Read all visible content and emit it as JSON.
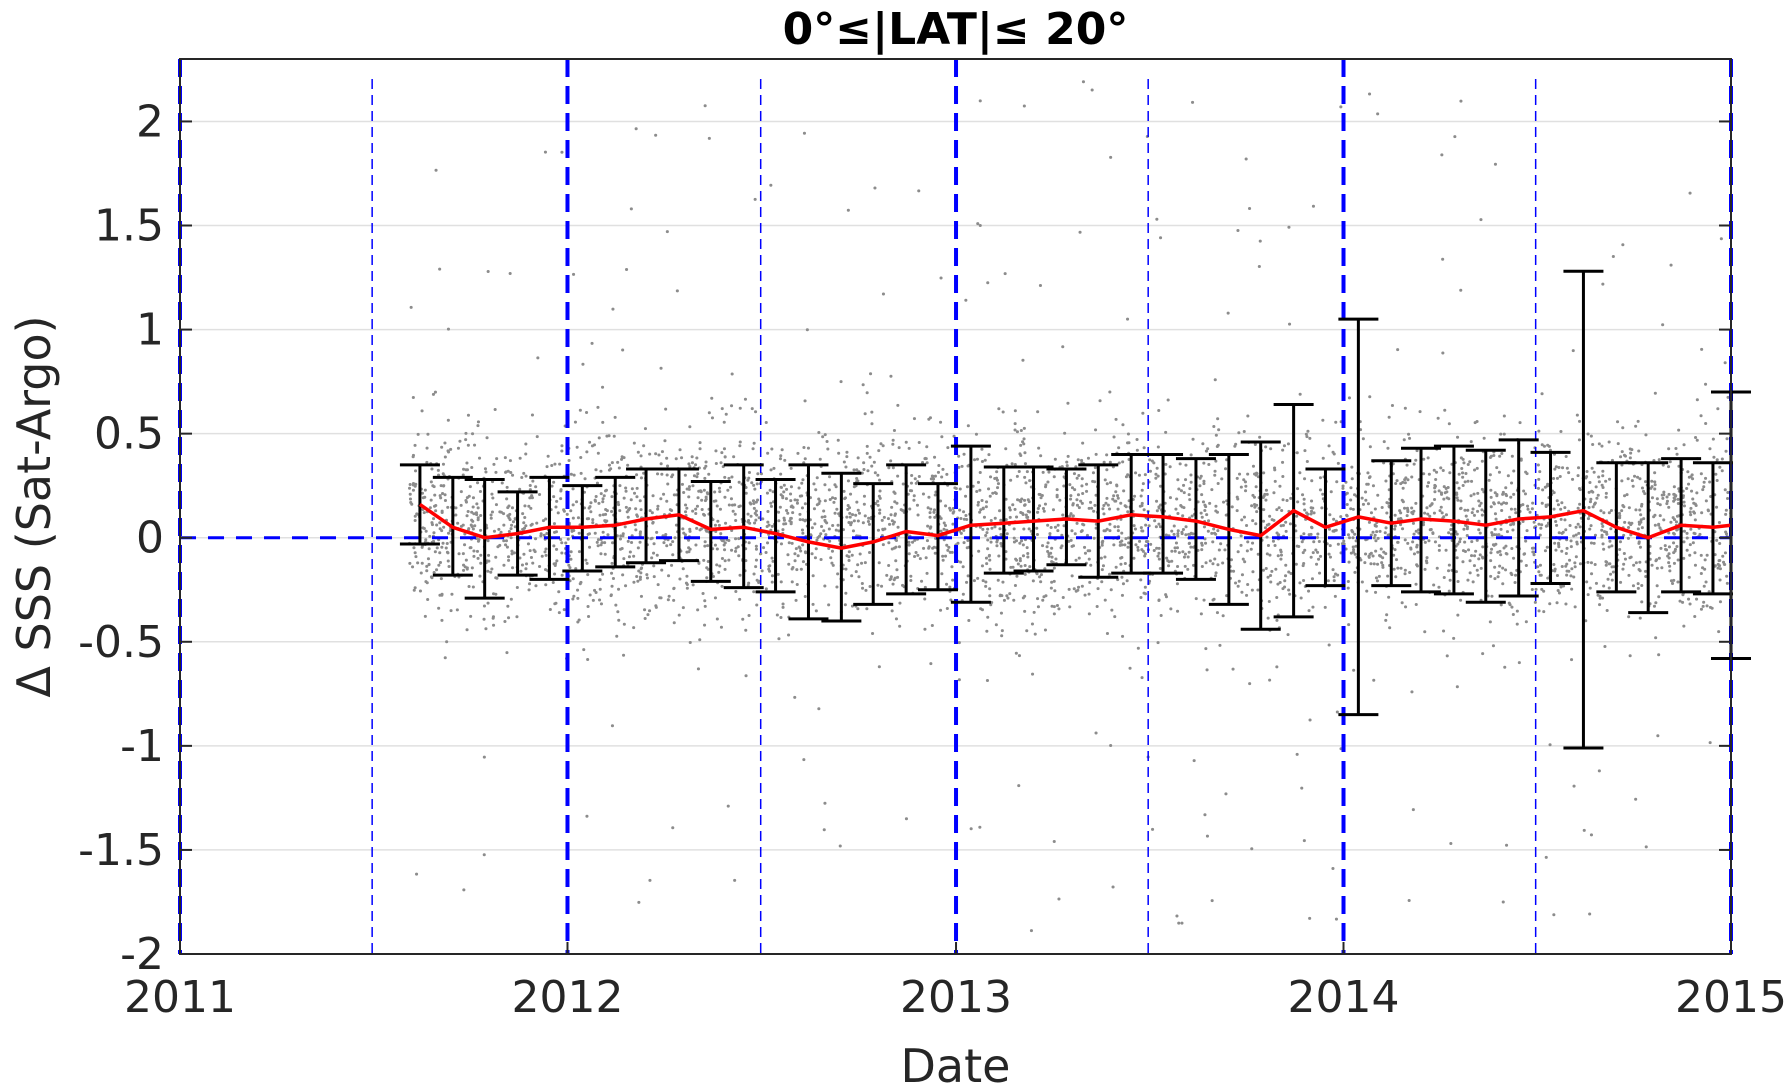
{
  "chart_data": {
    "type": "scatter",
    "title": "0°≤|LAT|≤ 20°",
    "xlabel": "Date",
    "ylabel": "Δ SSS (Sat-Argo)",
    "xlim": [
      "2011-01-01",
      "2015-01-01"
    ],
    "ylim": [
      -2,
      2.3
    ],
    "x_ticks": [
      "2011",
      "2012",
      "2013",
      "2014",
      "2015"
    ],
    "y_ticks": [
      "-2",
      "-1.5",
      "-1",
      "-0.5",
      "0",
      "0.5",
      "1",
      "1.5",
      "2"
    ],
    "y_tick_values": [
      -2,
      -1.5,
      -1,
      -0.5,
      0,
      0.5,
      1,
      1.5,
      2
    ],
    "grid": "horizontal",
    "colors": {
      "scatter": "#8c8c8c",
      "monthly_mean": "#ff0000",
      "error_bars": "#000000",
      "reference_lines": "#0000ff",
      "grid": "#e0e0e0"
    },
    "reference_lines": {
      "horizontal_zero": 0,
      "year_boundaries": [
        "2011-01-01",
        "2012-01-01",
        "2013-01-01",
        "2014-01-01",
        "2015-01-01"
      ],
      "mid_years": [
        "2011-07-01",
        "2012-07-01",
        "2013-07-01",
        "2014-07-01"
      ]
    },
    "scatter_note": "dense cloud of individual satellite-minus-Argo differences, mostly between -0.5 and 0.5",
    "series": [
      {
        "type": "line_with_errorbars",
        "dates": [
          "2011-08-15",
          "2011-09-15",
          "2011-10-15",
          "2011-11-15",
          "2011-12-15",
          "2012-01-15",
          "2012-02-15",
          "2012-03-15",
          "2012-04-15",
          "2012-05-15",
          "2012-06-15",
          "2012-07-15",
          "2012-08-15",
          "2012-09-15",
          "2012-10-15",
          "2012-11-15",
          "2012-12-15",
          "2013-01-15",
          "2013-02-15",
          "2013-03-15",
          "2013-04-15",
          "2013-05-15",
          "2013-06-15",
          "2013-07-15",
          "2013-08-15",
          "2013-09-15",
          "2013-10-15",
          "2013-11-15",
          "2013-12-15",
          "2014-01-15",
          "2014-02-15",
          "2014-03-15",
          "2014-04-15",
          "2014-05-15",
          "2014-06-15",
          "2014-07-15",
          "2014-08-15",
          "2014-09-15",
          "2014-10-15",
          "2014-11-15",
          "2014-12-15",
          "2015-01-01"
        ],
        "mean": [
          0.16,
          0.05,
          0.0,
          0.02,
          0.05,
          0.05,
          0.06,
          0.09,
          0.11,
          0.04,
          0.05,
          0.02,
          -0.02,
          -0.05,
          -0.02,
          0.03,
          0.01,
          0.06,
          0.07,
          0.08,
          0.09,
          0.08,
          0.11,
          0.1,
          0.08,
          0.04,
          0.01,
          0.13,
          0.05,
          0.1,
          0.07,
          0.09,
          0.08,
          0.06,
          0.09,
          0.1,
          0.13,
          0.05,
          0.0,
          0.06,
          0.05,
          0.06
        ],
        "upper": [
          0.35,
          0.29,
          0.28,
          0.22,
          0.29,
          0.25,
          0.29,
          0.33,
          0.33,
          0.27,
          0.35,
          0.28,
          0.35,
          0.31,
          0.26,
          0.35,
          0.26,
          0.44,
          0.34,
          0.34,
          0.33,
          0.35,
          0.4,
          0.4,
          0.38,
          0.4,
          0.46,
          0.64,
          0.33,
          1.05,
          0.37,
          0.43,
          0.44,
          0.42,
          0.47,
          0.41,
          1.28,
          0.36,
          0.36,
          0.38,
          0.36,
          0.7
        ],
        "lower": [
          -0.03,
          -0.18,
          -0.29,
          -0.18,
          -0.2,
          -0.16,
          -0.14,
          -0.12,
          -0.11,
          -0.21,
          -0.24,
          -0.26,
          -0.39,
          -0.4,
          -0.32,
          -0.27,
          -0.25,
          -0.31,
          -0.17,
          -0.16,
          -0.13,
          -0.19,
          -0.17,
          -0.17,
          -0.2,
          -0.32,
          -0.44,
          -0.38,
          -0.23,
          -0.85,
          -0.23,
          -0.26,
          -0.27,
          -0.31,
          -0.28,
          -0.22,
          -1.01,
          -0.26,
          -0.36,
          -0.26,
          -0.27,
          -0.58
        ]
      }
    ]
  }
}
